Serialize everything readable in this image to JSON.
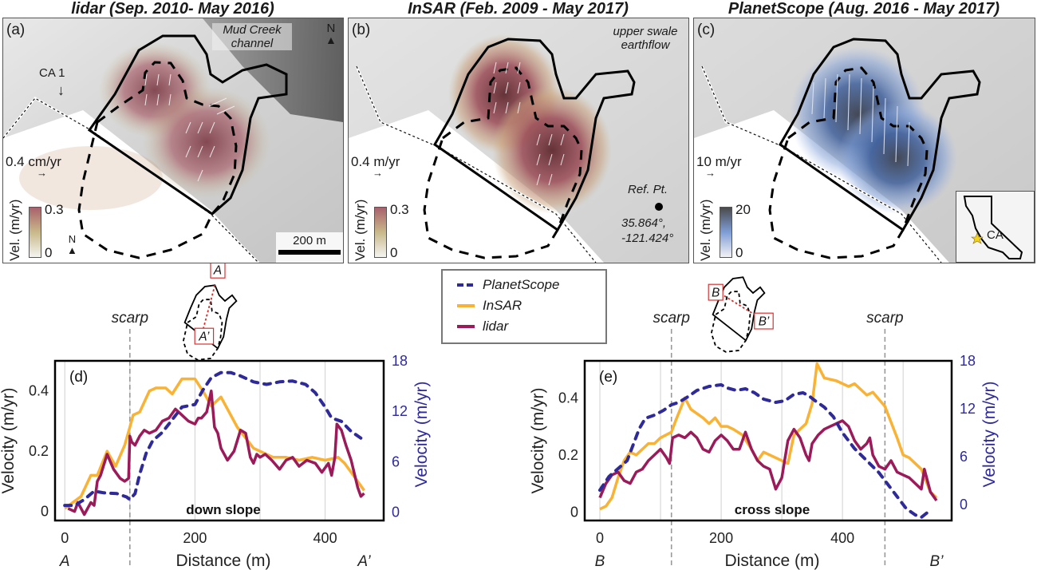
{
  "panels": [
    {
      "id": "a",
      "title": "lidar (Sep. 2010- May 2016)",
      "label": "(a)",
      "annotations": [
        "Mud Creek channel",
        "CA 1"
      ],
      "north_label": "N",
      "vector_scale": "0.4 cm/yr",
      "colorbar": {
        "label": "Vel. (m/yr)",
        "min": "0",
        "max": "0.3",
        "colors": [
          "#f4f4f0",
          "#c9b98a",
          "#a8616c"
        ]
      },
      "scalebar": "200 m"
    },
    {
      "id": "b",
      "title": "InSAR (Feb. 2009 - May 2017)",
      "label": "(b)",
      "annotations": [
        "upper swale earthflow"
      ],
      "vector_scale": "0.4 m/yr",
      "colorbar": {
        "label": "Vel. (m/yr)",
        "min": "0",
        "max": "0.3",
        "colors": [
          "#f4f4f0",
          "#c9b98a",
          "#a8616c"
        ]
      },
      "ref_point": {
        "label": "Ref. Pt.",
        "lat": "35.864°,",
        "lon": "-121.424°"
      }
    },
    {
      "id": "c",
      "title": "PlanetScope  (Aug. 2016 - May 2017)",
      "label": "(c)",
      "vector_scale": "10 m/yr",
      "colorbar": {
        "label": "Vel. (m/yr)",
        "min": "0",
        "max": "20",
        "colors": [
          "#f2f2f4",
          "#7f9ed6",
          "#4a4a4a"
        ]
      },
      "inset": {
        "state_label": "CA",
        "marker": "star-icon",
        "marker_color": "#f4d31c"
      }
    }
  ],
  "legend": {
    "items": [
      {
        "name": "PlanetScope",
        "color": "#2e2a9a",
        "style": "dashed"
      },
      {
        "name": "InSAR",
        "color": "#f9b233",
        "style": "solid"
      },
      {
        "name": "lidar",
        "color": "#9b1b5a",
        "style": "solid"
      }
    ]
  },
  "chart_data": [
    {
      "type": "line",
      "panel_label": "(d)",
      "profile_label": "down slope",
      "start_label": "A",
      "end_label": "A’",
      "inset_labels": [
        "A",
        "A’"
      ],
      "scarp_label": "scarp",
      "scarp_x": [
        100
      ],
      "xlabel": "Distance (m)",
      "ylabel_left": "Velocity (m/yr)",
      "ylabel_right": "Velocity (m/yr)",
      "xlim": [
        -15,
        490
      ],
      "ylim_left": [
        -0.03,
        0.5
      ],
      "ylim_right": [
        -1,
        18
      ],
      "xticks": [
        0,
        200,
        400
      ],
      "xgrid": [
        0,
        100,
        200,
        300,
        400
      ],
      "yticks_left": [
        0,
        0.2,
        0.4
      ],
      "yticks_right": [
        0,
        6,
        12,
        18
      ],
      "series": [
        {
          "name": "InSAR",
          "axis": "left",
          "x": [
            0,
            25,
            40,
            50,
            65,
            78,
            92,
            100,
            105,
            115,
            130,
            140,
            155,
            165,
            180,
            200,
            215,
            225,
            240,
            265,
            290,
            320,
            340,
            360,
            380,
            400,
            420,
            430,
            440,
            460
          ],
          "y": [
            0.01,
            0.05,
            0.12,
            0.12,
            0.2,
            0.15,
            0.22,
            0.28,
            0.32,
            0.33,
            0.4,
            0.41,
            0.41,
            0.39,
            0.44,
            0.44,
            0.39,
            0.35,
            0.38,
            0.28,
            0.21,
            0.18,
            0.18,
            0.17,
            0.18,
            0.17,
            0.18,
            0.16,
            0.13,
            0.07
          ]
        },
        {
          "name": "lidar",
          "axis": "left",
          "x": [
            5,
            15,
            20,
            30,
            40,
            45,
            50,
            55,
            65,
            75,
            85,
            92,
            98,
            100,
            103,
            108,
            115,
            122,
            130,
            140,
            150,
            160,
            170,
            180,
            190,
            200,
            205,
            210,
            218,
            225,
            230,
            235,
            240,
            250,
            260,
            270,
            278,
            285,
            290,
            295,
            300,
            308,
            318,
            330,
            340,
            350,
            360,
            372,
            385,
            395,
            405,
            410,
            415,
            418,
            425,
            432,
            440,
            450,
            455,
            460
          ],
          "y": [
            0.01,
            0.0,
            0.03,
            -0.01,
            0.03,
            0.02,
            0.1,
            0.12,
            0.19,
            0.14,
            0.11,
            0.1,
            0.11,
            0.25,
            0.23,
            0.22,
            0.25,
            0.27,
            0.26,
            0.27,
            0.3,
            0.31,
            0.34,
            0.32,
            0.3,
            0.29,
            0.31,
            0.31,
            0.33,
            0.4,
            0.28,
            0.26,
            0.21,
            0.17,
            0.2,
            0.27,
            0.26,
            0.18,
            0.16,
            0.19,
            0.18,
            0.19,
            0.17,
            0.14,
            0.17,
            0.18,
            0.15,
            0.17,
            0.16,
            0.13,
            0.16,
            0.12,
            0.18,
            0.29,
            0.27,
            0.22,
            0.17,
            0.08,
            0.05,
            0.06
          ]
        },
        {
          "name": "PlanetScope",
          "axis": "right",
          "x": [
            0,
            15,
            30,
            45,
            60,
            80,
            95,
            100,
            108,
            115,
            125,
            135,
            150,
            165,
            180,
            200,
            212,
            225,
            240,
            255,
            270,
            290,
            310,
            330,
            350,
            370,
            385,
            400,
            410,
            425,
            440,
            455
          ],
          "y": [
            0.8,
            0.8,
            1.5,
            2.5,
            2.3,
            2.2,
            1.8,
            1.5,
            2.2,
            4.5,
            7.0,
            8.5,
            9.5,
            11.0,
            12.5,
            12.8,
            14.5,
            16.0,
            16.6,
            16.6,
            16.2,
            15.5,
            15.2,
            15.5,
            15.6,
            15.2,
            14.2,
            12.5,
            11.2,
            10.8,
            9.6,
            8.8
          ]
        }
      ]
    },
    {
      "type": "line",
      "panel_label": "(e)",
      "profile_label": "cross slope",
      "start_label": "B",
      "end_label": "B’",
      "inset_labels": [
        "B",
        "B’"
      ],
      "scarp_label": "scarp",
      "scarp_x": [
        118,
        470
      ],
      "xlabel": "Distance (m)",
      "ylabel_left": "Velocity (m/yr)",
      "ylabel_right": "Velocity (m/yr)",
      "xlim": [
        -25,
        580
      ],
      "ylim_left": [
        -0.03,
        0.53
      ],
      "ylim_right": [
        -2,
        18
      ],
      "xticks": [
        0,
        200,
        400
      ],
      "xgrid": [
        0,
        100,
        200,
        300,
        400,
        500
      ],
      "yticks_left": [
        0,
        0.2,
        0.4
      ],
      "yticks_right": [
        0,
        6,
        12,
        18
      ],
      "series": [
        {
          "name": "InSAR",
          "axis": "left",
          "x": [
            0,
            10,
            20,
            30,
            40,
            50,
            60,
            80,
            90,
            100,
            118,
            125,
            140,
            150,
            170,
            180,
            190,
            200,
            210,
            220,
            235,
            250,
            260,
            270,
            290,
            310,
            320,
            330,
            340,
            350,
            358,
            370,
            390,
            410,
            420,
            440,
            450,
            470,
            490,
            500,
            510,
            530,
            545,
            555
          ],
          "y": [
            0.01,
            0.02,
            0.05,
            0.12,
            0.18,
            0.21,
            0.2,
            0.24,
            0.24,
            0.26,
            0.28,
            0.32,
            0.4,
            0.36,
            0.33,
            0.31,
            0.33,
            0.3,
            0.3,
            0.29,
            0.27,
            0.22,
            0.18,
            0.21,
            0.19,
            0.17,
            0.27,
            0.29,
            0.31,
            0.38,
            0.52,
            0.47,
            0.46,
            0.44,
            0.45,
            0.41,
            0.42,
            0.37,
            0.26,
            0.2,
            0.19,
            0.15,
            0.07,
            0.05
          ]
        },
        {
          "name": "lidar",
          "axis": "left",
          "x": [
            0,
            10,
            20,
            30,
            40,
            50,
            60,
            70,
            80,
            90,
            100,
            110,
            115,
            120,
            130,
            140,
            150,
            160,
            170,
            180,
            190,
            200,
            210,
            220,
            230,
            240,
            250,
            260,
            270,
            280,
            290,
            300,
            310,
            320,
            330,
            340,
            345,
            350,
            360,
            370,
            380,
            390,
            400,
            410,
            420,
            430,
            440,
            445,
            450,
            460,
            470,
            480,
            490,
            500,
            510,
            520,
            530,
            535,
            545,
            555
          ],
          "y": [
            0.05,
            0.1,
            0.13,
            0.14,
            0.11,
            0.1,
            0.14,
            0.15,
            0.18,
            0.2,
            0.22,
            0.19,
            0.17,
            0.26,
            0.27,
            0.26,
            0.28,
            0.26,
            0.22,
            0.21,
            0.25,
            0.27,
            0.25,
            0.22,
            0.22,
            0.28,
            0.22,
            0.18,
            0.16,
            0.15,
            0.08,
            0.12,
            0.25,
            0.29,
            0.26,
            0.2,
            0.18,
            0.24,
            0.27,
            0.29,
            0.3,
            0.31,
            0.32,
            0.3,
            0.25,
            0.22,
            0.24,
            0.26,
            0.2,
            0.16,
            0.15,
            0.18,
            0.14,
            0.13,
            0.12,
            0.1,
            0.08,
            0.15,
            0.07,
            0.04
          ]
        },
        {
          "name": "PlanetScope",
          "axis": "right",
          "x": [
            0,
            15,
            30,
            45,
            55,
            65,
            75,
            90,
            105,
            118,
            130,
            145,
            160,
            180,
            200,
            210,
            225,
            240,
            255,
            270,
            290,
            305,
            320,
            335,
            345,
            355,
            370,
            385,
            400,
            420,
            440,
            460,
            475,
            490,
            505,
            520,
            530,
            540
          ],
          "y": [
            1.8,
            3.5,
            4.5,
            5.5,
            7.5,
            9.5,
            10.8,
            11.2,
            11.8,
            12.5,
            12.8,
            13.5,
            14.3,
            14.8,
            15.0,
            14.6,
            14.3,
            14.5,
            14.0,
            13.2,
            12.8,
            13.0,
            13.8,
            14.0,
            13.6,
            13.0,
            12.2,
            11.0,
            9.0,
            7.0,
            5.5,
            4.0,
            2.5,
            1.0,
            -0.5,
            -1.3,
            -1.6,
            -1.0
          ]
        }
      ]
    }
  ]
}
